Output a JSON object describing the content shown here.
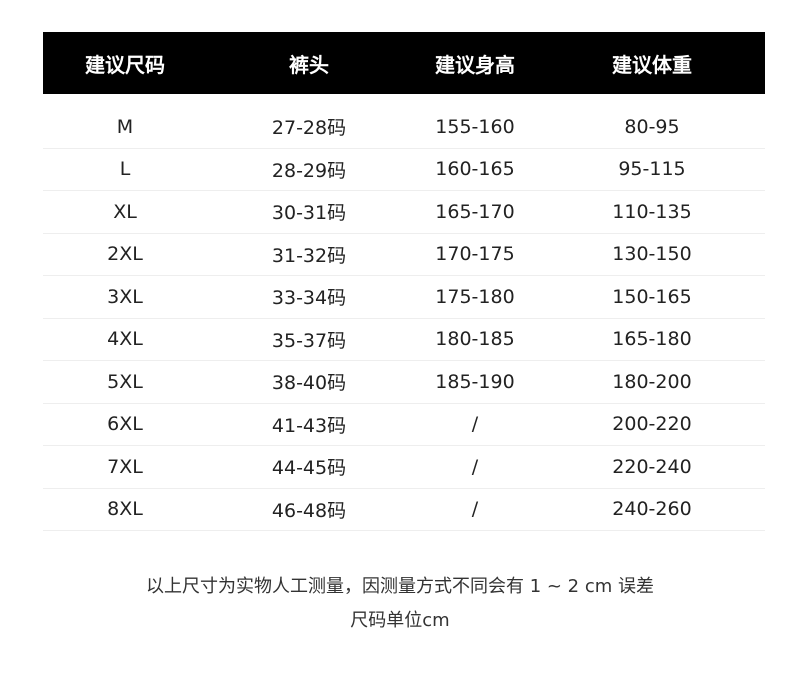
{
  "table": {
    "headers": [
      "建议尺码",
      "裤头",
      "建议身高",
      "建议体重"
    ],
    "rows": [
      [
        "M",
        "27-28码",
        "155-160",
        "80-95"
      ],
      [
        "L",
        "28-29码",
        "160-165",
        "95-115"
      ],
      [
        "XL",
        "30-31码",
        "165-170",
        "110-135"
      ],
      [
        "2XL",
        "31-32码",
        "170-175",
        "130-150"
      ],
      [
        "3XL",
        "33-34码",
        "175-180",
        "150-165"
      ],
      [
        "4XL",
        "35-37码",
        "180-185",
        "165-180"
      ],
      [
        "5XL",
        "38-40码",
        "185-190",
        "180-200"
      ],
      [
        "6XL",
        "41-43码",
        "/",
        "200-220"
      ],
      [
        "7XL",
        "44-45码",
        "/",
        "220-240"
      ],
      [
        "8XL",
        "46-48码",
        "/",
        "240-260"
      ]
    ]
  },
  "footer": {
    "note": "以上尺寸为实物人工测量，因测量方式不同会有 1 ~ 2 cm 误差",
    "unit": "尺码单位cm"
  },
  "colors": {
    "header_bg": "#000000",
    "header_text": "#ffffff"
  }
}
